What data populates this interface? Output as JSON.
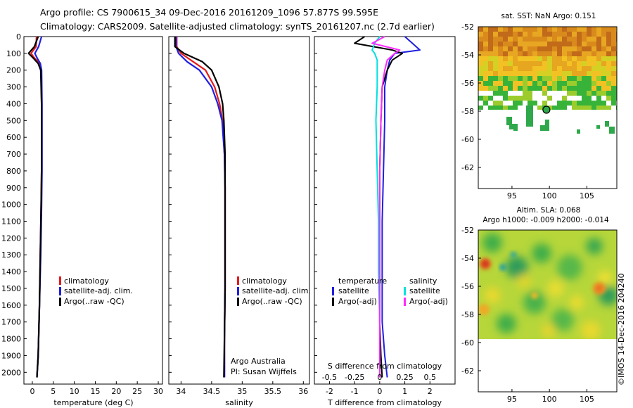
{
  "header": {
    "line1": "Argo profile: CS 7900615_34 09-Dec-2016 20161209_1096 57.877S 99.595E",
    "line2": "Climatology: CARS2009. Satellite-adjusted climatology: synTS_20161207.nc (2.7d earlier)"
  },
  "credit": "©IMOS 14-Dec-2016 204240",
  "colors": {
    "climatology": "#e41a1c",
    "satellite": "#1f1fe0",
    "argo": "#000000",
    "sat_s": "#00e0e0",
    "argo_s": "#ff2bff"
  },
  "panels": {
    "temperature": {
      "xlabel": "temperature (deg C)"
    },
    "salinity": {
      "xlabel": "salinity",
      "note1": "Argo Australia",
      "note2": "PI: Susan Wijffels"
    },
    "difference": {
      "xlabel": "T difference from climatology",
      "top_label": "S difference from climatology",
      "legend_head_t": "temperature",
      "legend_head_s": "salinity"
    },
    "legend_labels": [
      "climatology",
      "satellite-adj. clim.",
      "Argo(..raw -QC)"
    ],
    "diff_legend_labels": {
      "sat": "satellite",
      "argo": "Argo(-adj)"
    },
    "sst_map": {
      "title": "sat. SST: NaN Argo: 0.151"
    },
    "sla_map": {
      "title1": "Altim. SLA: 0.068",
      "title2": "Argo h1000: -0.009 h2000: -0.014"
    }
  },
  "chart_data": [
    {
      "type": "line",
      "name": "temperature profile",
      "xlabel": "temperature (deg C)",
      "ylabel": "",
      "xlim": [
        -2,
        31
      ],
      "ylim": [
        2070,
        0
      ],
      "xticks": [
        0,
        5,
        10,
        15,
        20,
        25,
        30
      ],
      "yticks": [
        0,
        100,
        200,
        300,
        400,
        500,
        600,
        700,
        800,
        900,
        1000,
        1100,
        1200,
        1300,
        1400,
        1500,
        1600,
        1700,
        1800,
        1900,
        2000
      ],
      "series": [
        {
          "name": "climatology",
          "color": "#e41a1c",
          "x": [
            1.0,
            0.9,
            -0.3,
            0.6,
            1.8,
            2.1,
            2.2,
            2.2,
            2.2,
            2.1,
            1.9,
            1.7,
            1.4,
            1.1
          ],
          "y": [
            0,
            60,
            100,
            130,
            160,
            200,
            400,
            600,
            800,
            1000,
            1300,
            1600,
            1900,
            2030
          ]
        },
        {
          "name": "satellite-adj. clim.",
          "color": "#1f1fe0",
          "x": [
            2.2,
            1.5,
            0.6,
            1.2,
            1.9,
            2.2,
            2.3,
            2.3,
            2.3,
            2.2,
            2.0,
            1.7,
            1.4,
            1.1
          ],
          "y": [
            0,
            60,
            100,
            130,
            160,
            200,
            400,
            600,
            800,
            1000,
            1300,
            1600,
            1900,
            2030
          ]
        },
        {
          "name": "Argo(..raw -QC)",
          "color": "#000000",
          "x": [
            1.4,
            0.5,
            -0.9,
            0.3,
            1.4,
            2.0,
            2.2,
            2.2,
            2.2,
            2.1,
            1.9,
            1.7,
            1.4,
            1.1
          ],
          "y": [
            0,
            60,
            100,
            130,
            160,
            200,
            400,
            600,
            800,
            1000,
            1300,
            1600,
            1900,
            2030
          ]
        }
      ]
    },
    {
      "type": "line",
      "name": "salinity profile",
      "xlabel": "salinity",
      "ylabel": "",
      "xlim": [
        33.8,
        36.1
      ],
      "ylim": [
        2070,
        0
      ],
      "xticks": [
        34,
        34.5,
        35,
        35.5,
        36
      ],
      "series": [
        {
          "name": "climatology",
          "color": "#e41a1c",
          "x": [
            33.93,
            33.93,
            34.0,
            34.2,
            34.4,
            34.55,
            34.63,
            34.68,
            34.71,
            34.72,
            34.72,
            34.72,
            34.71,
            34.71
          ],
          "y": [
            0,
            60,
            100,
            150,
            200,
            300,
            400,
            500,
            700,
            900,
            1200,
            1500,
            1800,
            2030
          ]
        },
        {
          "name": "satellite-adj. clim.",
          "color": "#1f1fe0",
          "x": [
            33.92,
            33.92,
            33.96,
            34.1,
            34.3,
            34.5,
            34.6,
            34.67,
            34.71,
            34.72,
            34.72,
            34.72,
            34.71,
            34.71
          ],
          "y": [
            0,
            60,
            100,
            150,
            200,
            300,
            400,
            500,
            700,
            900,
            1200,
            1500,
            1800,
            2030
          ]
        },
        {
          "name": "Argo(..raw -QC)",
          "color": "#000000",
          "x": [
            33.9,
            33.9,
            34.05,
            34.35,
            34.5,
            34.62,
            34.68,
            34.7,
            34.72,
            34.72,
            34.72,
            34.72,
            34.71,
            34.7
          ],
          "y": [
            0,
            60,
            100,
            150,
            200,
            300,
            400,
            500,
            700,
            900,
            1200,
            1500,
            1800,
            2030
          ]
        }
      ]
    },
    {
      "type": "line",
      "name": "difference from climatology",
      "xlabel": "T difference from climatology",
      "top_xlabel": "S difference from climatology",
      "xlim": [
        -2.6,
        3.0
      ],
      "ylim": [
        2070,
        0
      ],
      "xticks": [
        -2,
        -1,
        0,
        1,
        2
      ],
      "top_xticks": [
        "-0.5",
        "-0.25",
        "0",
        "0.25",
        "0.5"
      ],
      "series": [
        {
          "name": "temperature satellite",
          "color": "#1f1fe0",
          "x": [
            1.0,
            1.3,
            1.6,
            0.6,
            0.4,
            0.3,
            0.2,
            0.2,
            0.15,
            0.1,
            0.1,
            0.1,
            0.2,
            0.3
          ],
          "y": [
            0,
            40,
            80,
            100,
            140,
            200,
            300,
            500,
            800,
            1100,
            1400,
            1700,
            1900,
            2030
          ]
        },
        {
          "name": "temperature Argo(-adj)",
          "color": "#000000",
          "x": [
            -0.6,
            -1.0,
            0.5,
            0.9,
            0.5,
            0.3,
            0.1,
            0.05,
            0.0,
            0.0,
            0.0,
            0.0,
            0.05,
            0.1
          ],
          "y": [
            0,
            40,
            80,
            100,
            140,
            200,
            300,
            500,
            800,
            1100,
            1400,
            1700,
            1900,
            2030
          ]
        },
        {
          "name": "salinity satellite",
          "color": "#00e0e0",
          "x": [
            0.0,
            -0.2,
            -0.3,
            -0.2,
            -0.1,
            -0.1,
            -0.1,
            -0.15,
            -0.1,
            -0.05,
            -0.05,
            0.0,
            0.0,
            0.0
          ],
          "y": [
            0,
            40,
            80,
            100,
            140,
            200,
            300,
            500,
            800,
            1100,
            1400,
            1700,
            1900,
            2030
          ]
        },
        {
          "name": "salinity Argo(-adj)",
          "color": "#ff2bff",
          "x": [
            0.2,
            -0.3,
            0.8,
            0.6,
            0.3,
            0.2,
            0.1,
            0.05,
            0.0,
            0.0,
            0.0,
            0.0,
            0.0,
            0.0
          ],
          "y": [
            0,
            40,
            80,
            100,
            140,
            200,
            300,
            500,
            800,
            1100,
            1400,
            1700,
            1900,
            2030
          ]
        }
      ]
    },
    {
      "type": "heatmap",
      "name": "satellite SST map",
      "title": "sat. SST: NaN Argo: 0.151",
      "xlim": [
        90.5,
        109
      ],
      "ylim": [
        -63.5,
        -52
      ],
      "xticks": [
        95,
        100,
        105
      ],
      "yticks": [
        -52,
        -54,
        -56,
        -58,
        -60,
        -62
      ],
      "argo_position": {
        "lon": 99.6,
        "lat": -57.9
      }
    },
    {
      "type": "heatmap",
      "name": "altimetry SLA map",
      "title": "Altim. SLA: 0.068",
      "subtitle": "Argo h1000: -0.009 h2000: -0.014",
      "xlim": [
        90.5,
        109
      ],
      "ylim": [
        -63.5,
        -52
      ],
      "xticks": [
        95,
        100,
        105
      ],
      "yticks": [
        -52,
        -54,
        -56,
        -58,
        -60,
        -62
      ]
    }
  ]
}
